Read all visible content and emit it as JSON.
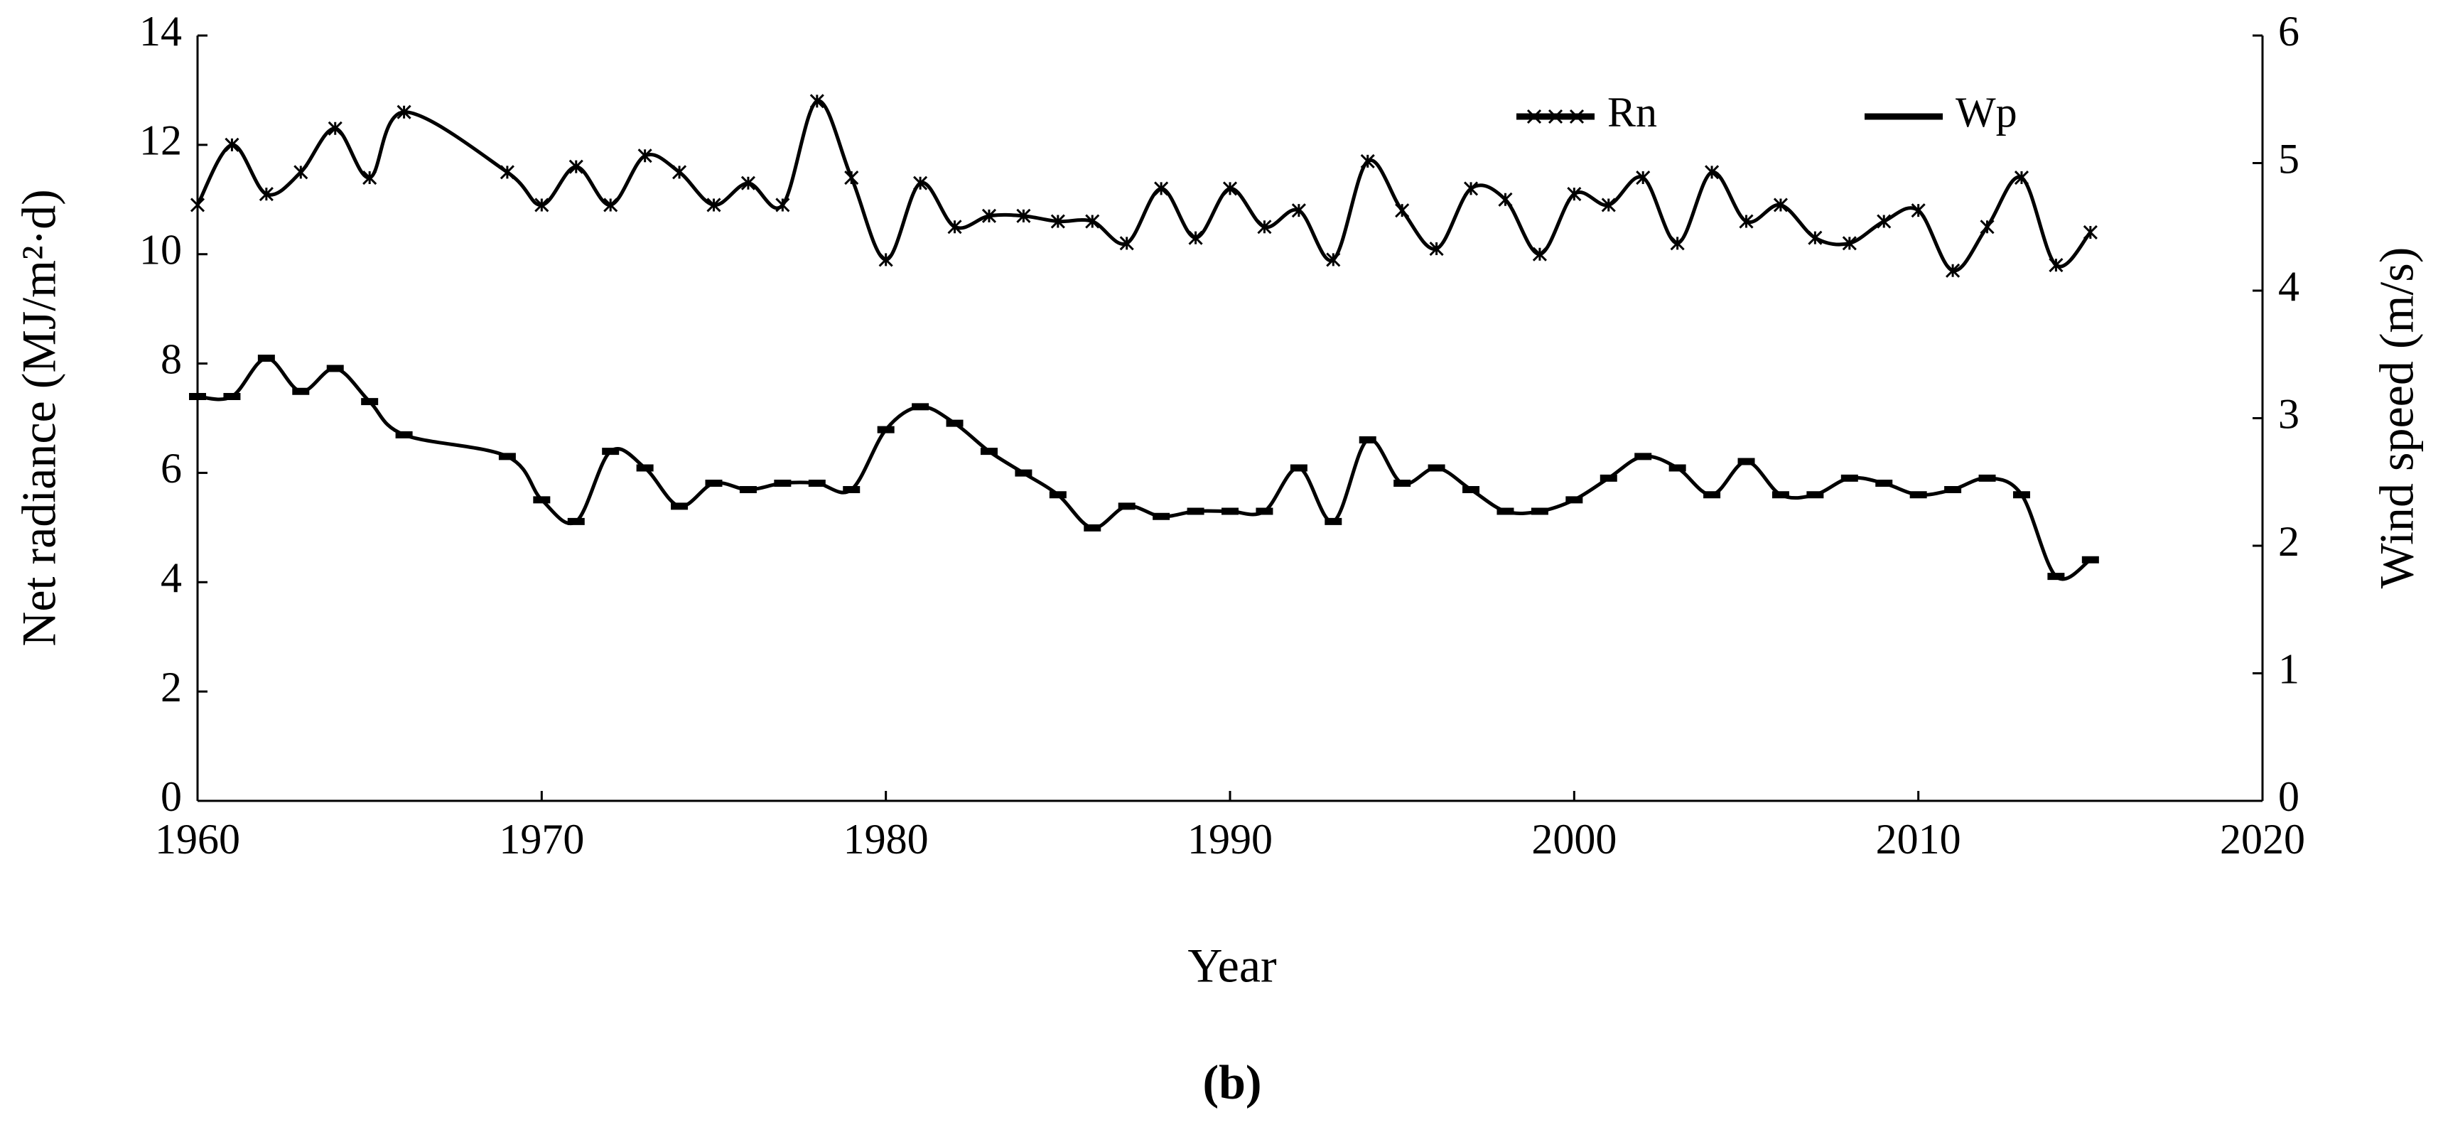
{
  "chart_data": {
    "type": "line",
    "xlabel": "Year",
    "ylabel": "Net radiance (MJ/m²·d)",
    "y2label": "Wind speed (m/s)",
    "caption": "(b)",
    "x": [
      1960,
      1961,
      1962,
      1963,
      1964,
      1965,
      1966,
      1969,
      1970,
      1971,
      1972,
      1973,
      1974,
      1975,
      1976,
      1977,
      1978,
      1979,
      1980,
      1981,
      1982,
      1983,
      1984,
      1985,
      1986,
      1987,
      1988,
      1989,
      1990,
      1991,
      1992,
      1993,
      1994,
      1995,
      1996,
      1997,
      1998,
      1999,
      2000,
      2001,
      2002,
      2003,
      2004,
      2005,
      2006,
      2007,
      2008,
      2009,
      2010,
      2011,
      2012,
      2013,
      2014,
      2015
    ],
    "series": [
      {
        "name": "Rn",
        "color": "#000000",
        "marker": "asterisk",
        "values": [
          10.9,
          12.0,
          11.1,
          11.5,
          12.3,
          11.4,
          12.6,
          11.5,
          10.9,
          11.6,
          10.9,
          11.8,
          11.5,
          10.9,
          11.3,
          10.9,
          12.8,
          11.4,
          9.9,
          11.3,
          10.5,
          10.7,
          10.7,
          10.6,
          10.6,
          10.2,
          11.2,
          10.3,
          11.2,
          10.5,
          10.8,
          9.9,
          11.7,
          10.8,
          10.1,
          11.2,
          11.0,
          10.0,
          11.1,
          10.9,
          11.4,
          10.2,
          11.5,
          10.6,
          10.9,
          10.3,
          10.2,
          10.6,
          10.8,
          9.7,
          10.5,
          11.4,
          9.8,
          10.4
        ]
      },
      {
        "name": "Wp",
        "color": "#000000",
        "marker": "dash",
        "axis": "y2",
        "values": [
          3.17,
          3.17,
          3.47,
          3.21,
          3.39,
          3.13,
          2.87,
          2.7,
          2.36,
          2.19,
          2.74,
          2.61,
          2.31,
          2.49,
          2.44,
          2.49,
          2.49,
          2.44,
          2.91,
          3.09,
          2.96,
          2.74,
          2.57,
          2.4,
          2.14,
          2.31,
          2.23,
          2.27,
          2.27,
          2.27,
          2.61,
          2.19,
          2.83,
          2.49,
          2.61,
          2.44,
          2.27,
          2.27,
          2.36,
          2.53,
          2.7,
          2.61,
          2.4,
          2.66,
          2.4,
          2.4,
          2.53,
          2.49,
          2.4,
          2.44,
          2.53,
          2.4,
          1.76,
          1.89
        ]
      }
    ],
    "xlim": [
      1960,
      2020
    ],
    "xticks": [
      1960,
      1970,
      1980,
      1990,
      2000,
      2010,
      2020
    ],
    "ylim": [
      0,
      14
    ],
    "yticks": [
      0,
      2,
      4,
      6,
      8,
      10,
      12,
      14
    ],
    "y2lim": [
      0,
      6
    ],
    "y2ticks": [
      0,
      1,
      2,
      3,
      4,
      5,
      6
    ],
    "legend": "upper right",
    "grid": false
  }
}
